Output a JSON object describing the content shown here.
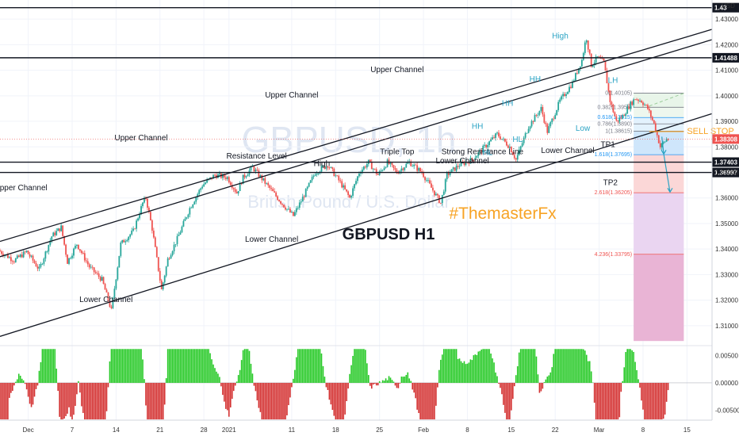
{
  "chart_data": {
    "type": "candlestick",
    "symbol_watermark": "GBPUSD, 1h",
    "watermark_sub": "British Pound / U.S. Dollar",
    "title": "GBPUSD H1",
    "brand": "#ThemasterFx",
    "currency": "USD",
    "ylim": [
      1.3025,
      1.4375
    ],
    "y_ticks": [
      "1.43000",
      "1.42000",
      "1.41000",
      "1.40000",
      "1.39000",
      "1.38000",
      "1.37000",
      "1.36000",
      "1.35000",
      "1.34000",
      "1.33000",
      "1.32000",
      "1.31000"
    ],
    "y_tick_values": [
      1.43,
      1.42,
      1.41,
      1.4,
      1.39,
      1.38,
      1.37,
      1.36,
      1.35,
      1.34,
      1.33,
      1.32,
      1.31
    ],
    "x_ticks": [
      "Dec",
      "7",
      "14",
      "21",
      "28",
      "2021",
      "11",
      "18",
      "25",
      "Feb",
      "8",
      "15",
      "22",
      "Mar",
      "8",
      "15"
    ],
    "x_tick_days": [
      0,
      7,
      14,
      21,
      28,
      32,
      42,
      49,
      56,
      63,
      70,
      77,
      84,
      91,
      98,
      105
    ],
    "x_days_range": [
      -4.5,
      109
    ],
    "price_path": [
      [
        -4.5,
        1.3395
      ],
      [
        -2,
        1.3355
      ],
      [
        0,
        1.339
      ],
      [
        2,
        1.332
      ],
      [
        4,
        1.345
      ],
      [
        5.5,
        1.3485
      ],
      [
        6.5,
        1.335
      ],
      [
        8,
        1.342
      ],
      [
        10,
        1.333
      ],
      [
        12,
        1.328
      ],
      [
        13.5,
        1.316
      ],
      [
        15,
        1.342
      ],
      [
        17,
        1.347
      ],
      [
        18.5,
        1.358
      ],
      [
        19,
        1.36
      ],
      [
        20,
        1.348
      ],
      [
        21.5,
        1.324
      ],
      [
        22.5,
        1.336
      ],
      [
        24,
        1.344
      ],
      [
        26,
        1.356
      ],
      [
        28,
        1.365
      ],
      [
        30,
        1.369
      ],
      [
        32,
        1.368
      ],
      [
        33.5,
        1.362
      ],
      [
        34.5,
        1.368
      ],
      [
        36,
        1.372
      ],
      [
        38,
        1.366
      ],
      [
        41,
        1.357
      ],
      [
        42.5,
        1.353
      ],
      [
        44,
        1.36
      ],
      [
        46,
        1.37
      ],
      [
        48,
        1.373
      ],
      [
        50,
        1.366
      ],
      [
        51.5,
        1.36
      ],
      [
        53,
        1.37
      ],
      [
        54.5,
        1.374
      ],
      [
        56,
        1.369
      ],
      [
        57.5,
        1.374
      ],
      [
        59,
        1.37
      ],
      [
        61,
        1.374
      ],
      [
        63,
        1.37
      ],
      [
        65,
        1.362
      ],
      [
        66,
        1.358
      ],
      [
        67,
        1.369
      ],
      [
        69,
        1.373
      ],
      [
        71,
        1.375
      ],
      [
        73,
        1.38
      ],
      [
        75,
        1.385
      ],
      [
        77,
        1.38
      ],
      [
        78,
        1.375
      ],
      [
        80,
        1.388
      ],
      [
        82,
        1.395
      ],
      [
        83,
        1.386
      ],
      [
        85,
        1.398
      ],
      [
        87,
        1.405
      ],
      [
        88.5,
        1.414
      ],
      [
        89.2,
        1.4232
      ],
      [
        90,
        1.412
      ],
      [
        91,
        1.415
      ],
      [
        92,
        1.413
      ],
      [
        93,
        1.398
      ],
      [
        94,
        1.39
      ],
      [
        95,
        1.392
      ],
      [
        96,
        1.396
      ],
      [
        97,
        1.399
      ],
      [
        98,
        1.398
      ],
      [
        99,
        1.395
      ],
      [
        100,
        1.389
      ],
      [
        101,
        1.38
      ],
      [
        102,
        1.383
      ]
    ],
    "oscillator_ylim": [
      -0.0068,
      0.0065
    ],
    "oscillator_ticks": [
      "0.00500",
      "0.00000",
      "-0.00500"
    ],
    "oscillator_tick_values": [
      0.005,
      0.0,
      -0.005
    ],
    "horizontal_levels": [
      {
        "price": 1.4345,
        "tag": "1.43",
        "color": "#131722"
      },
      {
        "price": 1.41488,
        "tag": "1.41488",
        "color": "#131722"
      },
      {
        "price": 1.37403,
        "tag": "1.37403",
        "color": "#131722"
      },
      {
        "price": 1.36997,
        "tag": "1.36997",
        "color": "#131722"
      }
    ],
    "current_price": {
      "price": 1.38308,
      "tag": "1.38308",
      "color": "#ef5350"
    },
    "channels": [
      {
        "from": [
          -4.5,
          1.343
        ],
        "to": [
          109,
          1.426
        ]
      },
      {
        "from": [
          -4.5,
          1.337
        ],
        "to": [
          109,
          1.422
        ]
      },
      {
        "from": [
          -4.5,
          1.3058
        ],
        "to": [
          109,
          1.393
        ]
      }
    ],
    "fibonacci": [
      {
        "label": "0(1.40105)",
        "price": 1.40105,
        "color": "#787b86"
      },
      {
        "label": "0.382(1.3955)",
        "price": 1.3955,
        "color": "#787b86"
      },
      {
        "label": "0.618(1.3915)",
        "price": 1.3915,
        "color": "#2196f3"
      },
      {
        "label": "0.786(1.3890)",
        "price": 1.389,
        "color": "#787b86"
      },
      {
        "label": "1(1.38615)",
        "price": 1.38615,
        "color": "#787b86"
      },
      {
        "label": "1.618(1.37695)",
        "price": 1.37695,
        "color": "#2196f3"
      },
      {
        "label": "2.618(1.36205)",
        "price": 1.36205,
        "color": "#ef5350"
      },
      {
        "label": "4.236(1.33795)",
        "price": 1.33795,
        "color": "#ef5350"
      }
    ],
    "annotations": [
      {
        "text": "Upper Channel",
        "d": 3,
        "p": 1.363,
        "cls": "lbl"
      },
      {
        "text": "Upper Channel",
        "d": 27,
        "p": 1.3825,
        "cls": "lbl"
      },
      {
        "text": "Upper Channel",
        "d": 57,
        "p": 1.3993,
        "cls": "lbl"
      },
      {
        "text": "Upper Channel",
        "d": 78,
        "p": 1.4093,
        "cls": "lbl"
      },
      {
        "text": "Resistance Level",
        "d": 50,
        "p": 1.3755,
        "cls": "lbl"
      },
      {
        "text": "High",
        "d": 63,
        "p": 1.3725,
        "cls": "lbl"
      },
      {
        "text": "Triple Top",
        "d": 78,
        "p": 1.3772,
        "cls": "lbl"
      },
      {
        "text": "Strong Resistance Line",
        "d": 95,
        "p": 1.3771,
        "cls": "lbl"
      },
      {
        "text": "Lower Channel",
        "d": 91,
        "p": 1.3735,
        "cls": "lbl"
      },
      {
        "text": "Lower Channel",
        "d": 112,
        "p": 1.3776,
        "cls": "lbl"
      },
      {
        "text": "Lower Channel",
        "d": 53,
        "p": 1.3428,
        "cls": "lbl"
      },
      {
        "text": "Lower Channel",
        "d": 20,
        "p": 1.3193,
        "cls": "lbl"
      },
      {
        "text": "High",
        "d": 110.5,
        "p": 1.4225,
        "cls": "pat"
      },
      {
        "text": "HH",
        "d": 105.5,
        "p": 1.4055,
        "cls": "pat"
      },
      {
        "text": "HH",
        "d": 100,
        "p": 1.396,
        "cls": "pat"
      },
      {
        "text": "HH",
        "d": 94,
        "p": 1.387,
        "cls": "pat"
      },
      {
        "text": "HL",
        "d": 102,
        "p": 1.382,
        "cls": "pat"
      },
      {
        "text": "HL",
        "d": 96,
        "p": 1.3768,
        "cls": "pat"
      },
      {
        "text": "LH",
        "d": 121,
        "p": 1.405,
        "cls": "pat"
      },
      {
        "text": "Low",
        "d": 115,
        "p": 1.3863,
        "cls": "pat"
      },
      {
        "text": "TP1",
        "d": 120,
        "p": 1.38,
        "cls": "lbl"
      },
      {
        "text": "TP2",
        "d": 120.5,
        "p": 1.365,
        "cls": "lbl"
      }
    ],
    "sell_stop": {
      "text": "SELL STOP",
      "price": 1.386,
      "color": "#f7a325"
    }
  }
}
